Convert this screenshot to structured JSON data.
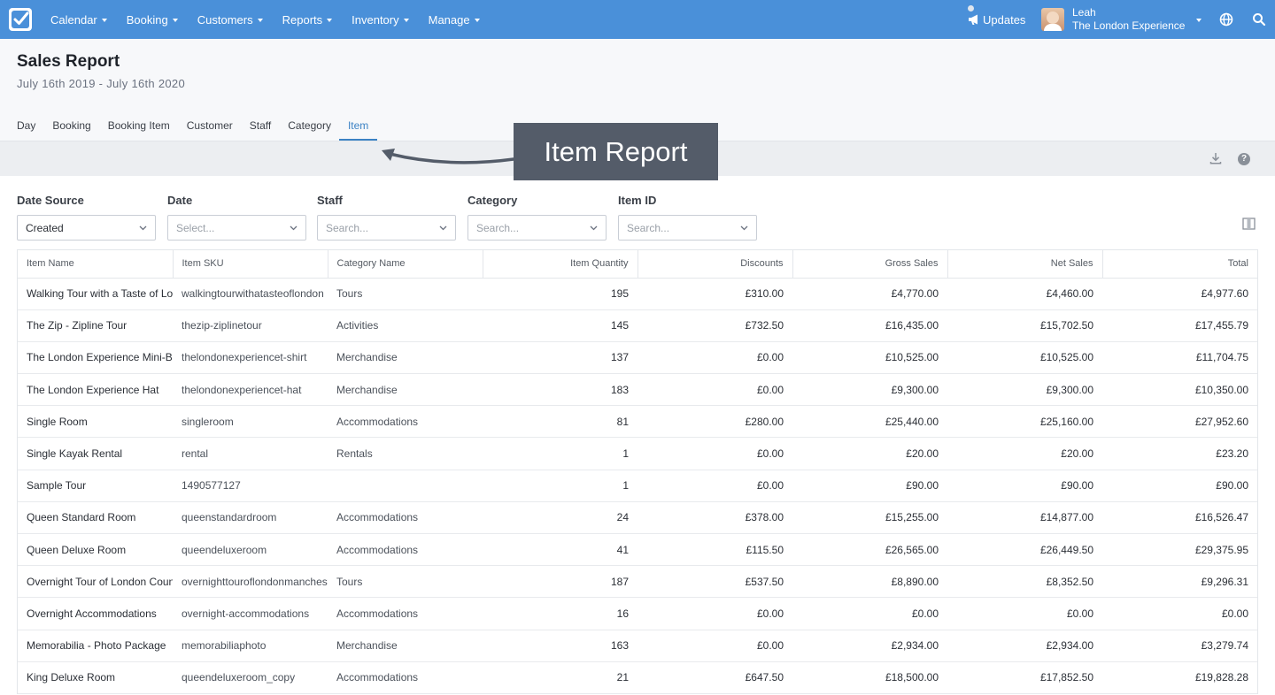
{
  "nav": {
    "items": [
      "Calendar",
      "Booking",
      "Customers",
      "Reports",
      "Inventory",
      "Manage"
    ],
    "updates_label": "Updates",
    "user_name": "Leah",
    "user_company": "The London Experience"
  },
  "page": {
    "title": "Sales Report",
    "date_range": "July 16th 2019 - July 16th 2020"
  },
  "tabs": [
    "Day",
    "Booking",
    "Booking Item",
    "Customer",
    "Staff",
    "Category",
    "Item"
  ],
  "active_tab": "Item",
  "callout": "Item Report",
  "filters": [
    {
      "label": "Date Source",
      "value": "Created"
    },
    {
      "label": "Date",
      "placeholder": "Select..."
    },
    {
      "label": "Staff",
      "placeholder": "Search..."
    },
    {
      "label": "Category",
      "placeholder": "Search..."
    },
    {
      "label": "Item ID",
      "placeholder": "Search..."
    }
  ],
  "table": {
    "columns": [
      "Item Name",
      "Item SKU",
      "Category Name",
      "Item Quantity",
      "Discounts",
      "Gross Sales",
      "Net Sales",
      "Total"
    ],
    "rows": [
      [
        "Walking Tour with a Taste of London",
        "walkingtourwithatasteoflondon",
        "Tours",
        "195",
        "£310.00",
        "£4,770.00",
        "£4,460.00",
        "£4,977.60"
      ],
      [
        "The Zip - Zipline Tour",
        "thezip-ziplinetour",
        "Activities",
        "145",
        "£732.50",
        "£16,435.00",
        "£15,702.50",
        "£17,455.79"
      ],
      [
        "The London Experience Mini-Backpack",
        "thelondonexperiencet-shirt",
        "Merchandise",
        "137",
        "£0.00",
        "£10,525.00",
        "£10,525.00",
        "£11,704.75"
      ],
      [
        "The London Experience Hat",
        "thelondonexperiencet-hat",
        "Merchandise",
        "183",
        "£0.00",
        "£9,300.00",
        "£9,300.00",
        "£10,350.00"
      ],
      [
        "Single Room",
        "singleroom",
        "Accommodations",
        "81",
        "£280.00",
        "£25,440.00",
        "£25,160.00",
        "£27,952.60"
      ],
      [
        "Single Kayak Rental",
        "rental",
        "Rentals",
        "1",
        "£0.00",
        "£20.00",
        "£20.00",
        "£23.20"
      ],
      [
        "Sample Tour",
        "1490577127",
        "",
        "1",
        "£0.00",
        "£90.00",
        "£90.00",
        "£90.00"
      ],
      [
        "Queen Standard Room",
        "queenstandardroom",
        "Accommodations",
        "24",
        "£378.00",
        "£15,255.00",
        "£14,877.00",
        "£16,526.47"
      ],
      [
        "Queen Deluxe Room",
        "queendeluxeroom",
        "Accommodations",
        "41",
        "£115.50",
        "£26,565.00",
        "£26,449.50",
        "£29,375.95"
      ],
      [
        "Overnight Tour of London Countryside",
        "overnighttouroflondonmanchester",
        "Tours",
        "187",
        "£537.50",
        "£8,890.00",
        "£8,352.50",
        "£9,296.31"
      ],
      [
        "Overnight Accommodations",
        "overnight-accommodations",
        "Accommodations",
        "16",
        "£0.00",
        "£0.00",
        "£0.00",
        "£0.00"
      ],
      [
        "Memorabilia - Photo Package",
        "memorabiliaphoto",
        "Merchandise",
        "163",
        "£0.00",
        "£2,934.00",
        "£2,934.00",
        "£3,279.74"
      ],
      [
        "King Deluxe Room",
        "queendeluxeroom_copy",
        "Accommodations",
        "21",
        "£647.50",
        "£18,500.00",
        "£17,852.50",
        "£19,828.28"
      ]
    ]
  },
  "colors": {
    "nav_bg": "#4a90d9",
    "accent": "#3b82c4",
    "callout_bg": "#545c69"
  }
}
